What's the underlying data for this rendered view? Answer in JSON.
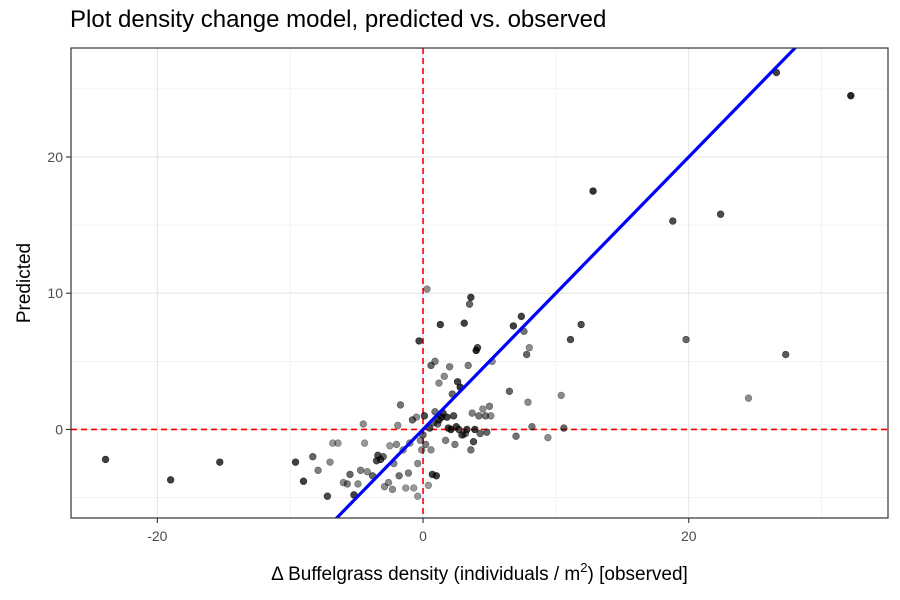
{
  "chart_data": {
    "type": "scatter",
    "title": "Plot density change model, predicted vs. observed",
    "xlabel": {
      "delta": "Δ",
      "main": " Buffelgrass density (individuals / m",
      "sup": "2",
      "tail": ") [observed]"
    },
    "ylabel": "Predicted",
    "xlim": [
      -26.5,
      35
    ],
    "ylim": [
      -6.5,
      28
    ],
    "x_ticks": [
      -20,
      0,
      20
    ],
    "y_ticks": [
      0,
      10,
      20
    ],
    "x_tick_labels": [
      "-20",
      "0",
      "20"
    ],
    "y_tick_labels": [
      "0",
      "10",
      "20"
    ],
    "grid": true,
    "reference_lines": [
      {
        "axis": "x",
        "value": 0,
        "style": "dashed",
        "color": "#ff0000"
      },
      {
        "axis": "y",
        "value": 0,
        "style": "dashed",
        "color": "#ff0000"
      }
    ],
    "fit_line": {
      "x": [
        -7,
        28.5
      ],
      "y": [
        -7,
        28.5
      ],
      "color": "#0000ff"
    },
    "point_color": "#000000",
    "points": [
      {
        "x": -23.9,
        "y": -2.2,
        "a": 0.75
      },
      {
        "x": -19.0,
        "y": -3.7,
        "a": 0.75
      },
      {
        "x": -15.3,
        "y": -2.4,
        "a": 0.75
      },
      {
        "x": -9.6,
        "y": -2.4,
        "a": 0.75
      },
      {
        "x": -9.0,
        "y": -3.8,
        "a": 0.75
      },
      {
        "x": -8.3,
        "y": -2.0,
        "a": 0.6
      },
      {
        "x": -7.9,
        "y": -3.0,
        "a": 0.5
      },
      {
        "x": -7.2,
        "y": -4.9,
        "a": 0.7
      },
      {
        "x": -7.0,
        "y": -2.4,
        "a": 0.45
      },
      {
        "x": -6.8,
        "y": -1.0,
        "a": 0.4
      },
      {
        "x": -6.4,
        "y": -1.0,
        "a": 0.4
      },
      {
        "x": -6.0,
        "y": -3.9,
        "a": 0.45
      },
      {
        "x": -5.7,
        "y": -4.0,
        "a": 0.5
      },
      {
        "x": -5.5,
        "y": -3.3,
        "a": 0.6
      },
      {
        "x": -5.2,
        "y": -4.8,
        "a": 0.75
      },
      {
        "x": -4.9,
        "y": -4.0,
        "a": 0.45
      },
      {
        "x": -4.7,
        "y": -3.0,
        "a": 0.5
      },
      {
        "x": -4.4,
        "y": -1.0,
        "a": 0.4
      },
      {
        "x": -4.5,
        "y": 0.4,
        "a": 0.45
      },
      {
        "x": -4.2,
        "y": -3.1,
        "a": 0.45
      },
      {
        "x": -3.8,
        "y": -3.4,
        "a": 0.6
      },
      {
        "x": -3.5,
        "y": -2.3,
        "a": 0.7
      },
      {
        "x": -3.4,
        "y": -1.9,
        "a": 0.7
      },
      {
        "x": -3.2,
        "y": -2.2,
        "a": 0.7
      },
      {
        "x": -3.0,
        "y": -2.0,
        "a": 0.6
      },
      {
        "x": -2.9,
        "y": -4.2,
        "a": 0.45
      },
      {
        "x": -2.6,
        "y": -3.9,
        "a": 0.45
      },
      {
        "x": -2.5,
        "y": -1.2,
        "a": 0.4
      },
      {
        "x": -2.3,
        "y": -4.4,
        "a": 0.45
      },
      {
        "x": -2.2,
        "y": -2.5,
        "a": 0.5
      },
      {
        "x": -2.0,
        "y": -1.1,
        "a": 0.45
      },
      {
        "x": -1.9,
        "y": 0.3,
        "a": 0.45
      },
      {
        "x": -1.8,
        "y": -3.4,
        "a": 0.55
      },
      {
        "x": -1.7,
        "y": 1.8,
        "a": 0.55
      },
      {
        "x": -1.5,
        "y": -1.5,
        "a": 0.45
      },
      {
        "x": -1.3,
        "y": -4.3,
        "a": 0.4
      },
      {
        "x": -1.1,
        "y": -3.2,
        "a": 0.5
      },
      {
        "x": -1.0,
        "y": -1.0,
        "a": 0.45
      },
      {
        "x": -0.8,
        "y": 0.7,
        "a": 0.6
      },
      {
        "x": -0.7,
        "y": -4.3,
        "a": 0.4
      },
      {
        "x": -0.5,
        "y": 0.9,
        "a": 0.45
      },
      {
        "x": -0.4,
        "y": -2.5,
        "a": 0.45
      },
      {
        "x": -0.4,
        "y": -4.9,
        "a": 0.4
      },
      {
        "x": -0.3,
        "y": 6.5,
        "a": 0.75
      },
      {
        "x": -0.2,
        "y": -0.8,
        "a": 0.45
      },
      {
        "x": -0.1,
        "y": -1.5,
        "a": 0.45
      },
      {
        "x": 0.0,
        "y": -0.4,
        "a": 0.6
      },
      {
        "x": 0.1,
        "y": 1.0,
        "a": 0.7
      },
      {
        "x": 0.2,
        "y": -1.1,
        "a": 0.5
      },
      {
        "x": 0.3,
        "y": 10.3,
        "a": 0.45
      },
      {
        "x": 0.4,
        "y": -4.1,
        "a": 0.4
      },
      {
        "x": 0.5,
        "y": 0.1,
        "a": 0.7
      },
      {
        "x": 0.6,
        "y": -1.5,
        "a": 0.45
      },
      {
        "x": 0.6,
        "y": 4.7,
        "a": 0.6
      },
      {
        "x": 0.7,
        "y": -3.3,
        "a": 0.75
      },
      {
        "x": 0.8,
        "y": 0.5,
        "a": 0.6
      },
      {
        "x": 0.9,
        "y": 5.0,
        "a": 0.5
      },
      {
        "x": 0.9,
        "y": 1.3,
        "a": 0.55
      },
      {
        "x": 1.0,
        "y": -3.4,
        "a": 0.75
      },
      {
        "x": 1.1,
        "y": 0.4,
        "a": 0.6
      },
      {
        "x": 1.2,
        "y": 3.4,
        "a": 0.45
      },
      {
        "x": 1.2,
        "y": 0.7,
        "a": 0.75
      },
      {
        "x": 1.3,
        "y": 7.7,
        "a": 0.75
      },
      {
        "x": 1.4,
        "y": 0.9,
        "a": 0.8
      },
      {
        "x": 1.5,
        "y": 1.2,
        "a": 0.75
      },
      {
        "x": 1.6,
        "y": 3.9,
        "a": 0.45
      },
      {
        "x": 1.7,
        "y": -0.8,
        "a": 0.5
      },
      {
        "x": 1.8,
        "y": 0.9,
        "a": 0.75
      },
      {
        "x": 1.9,
        "y": 0.1,
        "a": 0.75
      },
      {
        "x": 2.0,
        "y": 4.6,
        "a": 0.5
      },
      {
        "x": 2.1,
        "y": 0.0,
        "a": 0.8
      },
      {
        "x": 2.2,
        "y": 2.6,
        "a": 0.6
      },
      {
        "x": 2.3,
        "y": 1.0,
        "a": 0.7
      },
      {
        "x": 2.4,
        "y": -1.1,
        "a": 0.5
      },
      {
        "x": 2.5,
        "y": 0.2,
        "a": 0.75
      },
      {
        "x": 2.6,
        "y": 3.5,
        "a": 0.75
      },
      {
        "x": 2.7,
        "y": 0.0,
        "a": 0.7
      },
      {
        "x": 2.8,
        "y": 3.1,
        "a": 0.8
      },
      {
        "x": 2.9,
        "y": -0.4,
        "a": 0.45
      },
      {
        "x": 3.0,
        "y": -0.4,
        "a": 0.6
      },
      {
        "x": 3.1,
        "y": 7.8,
        "a": 0.75
      },
      {
        "x": 3.2,
        "y": -0.3,
        "a": 0.55
      },
      {
        "x": 3.3,
        "y": 0.0,
        "a": 0.75
      },
      {
        "x": 3.4,
        "y": 4.7,
        "a": 0.5
      },
      {
        "x": 3.5,
        "y": 9.2,
        "a": 0.6
      },
      {
        "x": 3.6,
        "y": -1.5,
        "a": 0.55
      },
      {
        "x": 3.6,
        "y": 9.7,
        "a": 0.75
      },
      {
        "x": 3.7,
        "y": 1.2,
        "a": 0.5
      },
      {
        "x": 3.8,
        "y": -0.9,
        "a": 0.7
      },
      {
        "x": 3.9,
        "y": 0.0,
        "a": 0.75
      },
      {
        "x": 4.0,
        "y": 5.8,
        "a": 0.85
      },
      {
        "x": 4.1,
        "y": 6.0,
        "a": 0.7
      },
      {
        "x": 4.2,
        "y": 1.0,
        "a": 0.55
      },
      {
        "x": 4.3,
        "y": -0.3,
        "a": 0.6
      },
      {
        "x": 4.5,
        "y": 1.5,
        "a": 0.45
      },
      {
        "x": 4.7,
        "y": 1.0,
        "a": 0.55
      },
      {
        "x": 4.8,
        "y": -0.2,
        "a": 0.6
      },
      {
        "x": 5.0,
        "y": 1.7,
        "a": 0.5
      },
      {
        "x": 5.1,
        "y": 1.0,
        "a": 0.45
      },
      {
        "x": 5.2,
        "y": 5.0,
        "a": 0.45
      },
      {
        "x": 6.5,
        "y": 2.8,
        "a": 0.6
      },
      {
        "x": 6.8,
        "y": 7.6,
        "a": 0.75
      },
      {
        "x": 7.0,
        "y": -0.5,
        "a": 0.55
      },
      {
        "x": 7.4,
        "y": 8.3,
        "a": 0.75
      },
      {
        "x": 7.6,
        "y": 7.2,
        "a": 0.55
      },
      {
        "x": 7.8,
        "y": 5.5,
        "a": 0.6
      },
      {
        "x": 7.9,
        "y": 2.0,
        "a": 0.45
      },
      {
        "x": 8.0,
        "y": 6.0,
        "a": 0.45
      },
      {
        "x": 8.2,
        "y": 0.2,
        "a": 0.55
      },
      {
        "x": 9.4,
        "y": -0.6,
        "a": 0.45
      },
      {
        "x": 10.4,
        "y": 2.5,
        "a": 0.45
      },
      {
        "x": 10.6,
        "y": 0.1,
        "a": 0.6
      },
      {
        "x": 11.1,
        "y": 6.6,
        "a": 0.7
      },
      {
        "x": 11.9,
        "y": 7.7,
        "a": 0.7
      },
      {
        "x": 12.8,
        "y": 17.5,
        "a": 0.8
      },
      {
        "x": 18.8,
        "y": 15.3,
        "a": 0.7
      },
      {
        "x": 19.8,
        "y": 6.6,
        "a": 0.6
      },
      {
        "x": 22.4,
        "y": 15.8,
        "a": 0.7
      },
      {
        "x": 24.5,
        "y": 2.3,
        "a": 0.45
      },
      {
        "x": 26.6,
        "y": 26.2,
        "a": 0.75
      },
      {
        "x": 27.3,
        "y": 5.5,
        "a": 0.65
      },
      {
        "x": 32.2,
        "y": 24.5,
        "a": 0.85
      }
    ]
  }
}
